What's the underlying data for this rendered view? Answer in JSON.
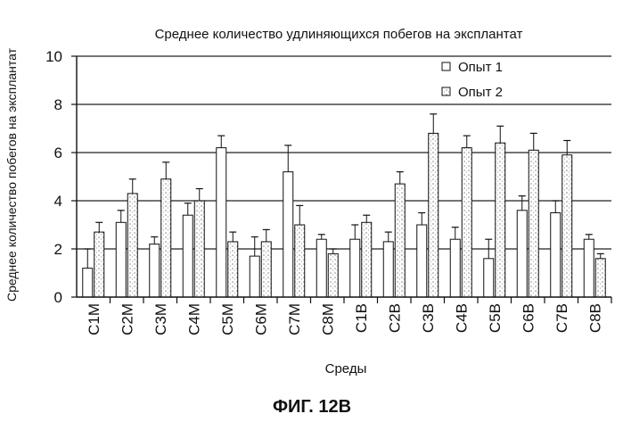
{
  "figure_label": "ФИГ. 12B",
  "chart_data": {
    "type": "bar",
    "title": "Среднее количество удлиняющихся побегов на эксплантат",
    "xlabel": "Среды",
    "ylabel": "Среднее количество побегов на эксплантат",
    "ylim": [
      0,
      10
    ],
    "yticks": [
      "0",
      "2",
      "4",
      "6",
      "8",
      "10"
    ],
    "grid": true,
    "legend_position": "top-right",
    "categories": [
      "C1M",
      "C2M",
      "C3M",
      "C4M",
      "C5M",
      "C6M",
      "C7M",
      "C8M",
      "C1B",
      "C2B",
      "C3B",
      "C4B",
      "C5B",
      "C6B",
      "C7B",
      "C8B"
    ],
    "series": [
      {
        "name": "Опыт 1",
        "pattern": "open",
        "values": [
          1.2,
          3.1,
          2.2,
          3.4,
          6.2,
          1.7,
          5.2,
          2.4,
          2.4,
          2.3,
          3.0,
          2.4,
          1.6,
          3.6,
          3.5,
          2.4
        ],
        "errors": [
          0.8,
          0.5,
          0.3,
          0.5,
          0.5,
          0.8,
          1.1,
          0.2,
          0.6,
          0.4,
          0.5,
          0.5,
          0.8,
          0.6,
          0.5,
          0.2
        ]
      },
      {
        "name": "Опыт 2",
        "pattern": "stippled",
        "values": [
          2.7,
          4.3,
          4.9,
          4.0,
          2.3,
          2.3,
          3.0,
          1.8,
          3.1,
          4.7,
          6.8,
          6.2,
          6.4,
          6.1,
          5.9,
          1.6
        ],
        "errors": [
          0.4,
          0.6,
          0.7,
          0.5,
          0.4,
          0.5,
          0.8,
          0.2,
          0.3,
          0.5,
          0.8,
          0.5,
          0.7,
          0.7,
          0.6,
          0.2
        ]
      }
    ]
  }
}
